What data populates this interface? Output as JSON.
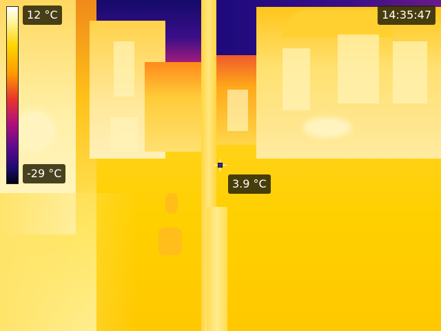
{
  "scale": {
    "max_label": "12 °C",
    "min_label": "-29 °C",
    "palette": "iron"
  },
  "clock": "14:35:47",
  "spot": {
    "readout": "3.9 °C",
    "marker": "crosshair-icon"
  },
  "colors": {
    "hot": "#fff6c8",
    "warm": "#ffd400",
    "mid": "#e8362a",
    "cool": "#5a0a8e",
    "cold": "#000010",
    "label_bg": "#2d280a"
  }
}
